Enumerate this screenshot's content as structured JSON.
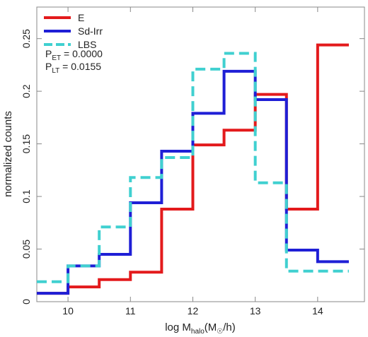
{
  "chart_data": {
    "type": "line",
    "step": true,
    "title": "",
    "xlabel": "log M",
    "xlabel_sub": "halo",
    "xlabel_unit": "(M",
    "xlabel_unit_end": "/h)",
    "ylabel": "normalized counts",
    "xlim": [
      9.5,
      14.75
    ],
    "ylim": [
      0,
      0.28
    ],
    "x_ticks": [
      10,
      11,
      12,
      13,
      14
    ],
    "x_tick_labels": [
      "10",
      "11",
      "12",
      "13",
      "14"
    ],
    "y_ticks": [
      0,
      0.05,
      0.1,
      0.15,
      0.2,
      0.25
    ],
    "y_tick_labels": [
      "0",
      "0.05",
      "0.1",
      "0.15",
      "0.2",
      "0.25"
    ],
    "bin_edges": [
      9.5,
      10.0,
      10.5,
      11.0,
      11.5,
      12.0,
      12.5,
      13.0,
      13.5,
      14.0,
      14.5
    ],
    "series": [
      {
        "name": "E",
        "color": "#e31a1c",
        "dash": "solid",
        "values": [
          0.008,
          0.014,
          0.021,
          0.028,
          0.088,
          0.149,
          0.163,
          0.197,
          0.088,
          0.244
        ]
      },
      {
        "name": "Sd-Irr",
        "color": "#1f1fd6",
        "dash": "solid",
        "values": [
          0.008,
          0.034,
          0.045,
          0.094,
          0.143,
          0.179,
          0.219,
          0.192,
          0.049,
          0.038
        ]
      },
      {
        "name": "LBS",
        "color": "#40d0d0",
        "dash": "dashed",
        "values": [
          0.019,
          0.034,
          0.071,
          0.118,
          0.137,
          0.221,
          0.236,
          0.113,
          0.029,
          0.029
        ]
      }
    ],
    "annotations": [
      {
        "main": "P",
        "sub": "ET",
        "value": " = 0.0000"
      },
      {
        "main": "P",
        "sub": "LT",
        "value": " = 0.0155"
      }
    ],
    "legend_position": "top-left",
    "grid": false
  }
}
